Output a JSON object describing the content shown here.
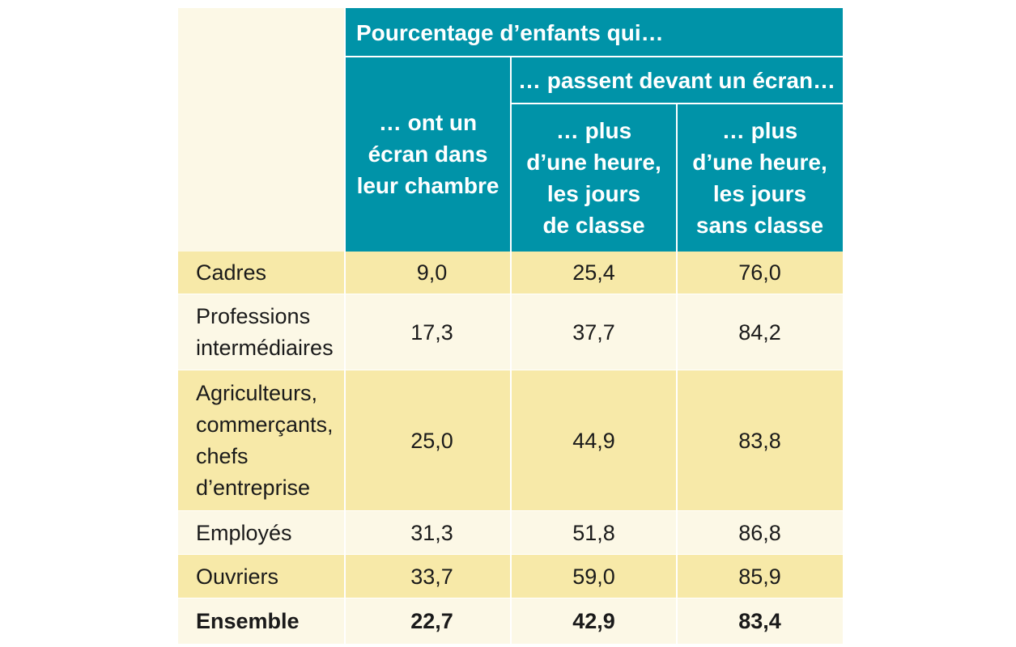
{
  "chart_data": {
    "type": "table",
    "header": {
      "top": "Pourcentage d’enfants qui…",
      "group": "… passent devant un écran…",
      "columns": [
        [
          "… ont un",
          "écran dans",
          "leur chambre"
        ],
        [
          "… plus",
          "d’une heure,",
          "les jours",
          "de classe"
        ],
        [
          "… plus",
          "d’une heure,",
          "les jours",
          "sans classe"
        ]
      ]
    },
    "rows": [
      {
        "label": [
          "Cadres"
        ],
        "values": [
          "9,0",
          "25,4",
          "76,0"
        ]
      },
      {
        "label": [
          "Professions",
          "intermédiaires"
        ],
        "values": [
          "17,3",
          "37,7",
          "84,2"
        ]
      },
      {
        "label": [
          "Agriculteurs,",
          "commerçants,",
          "chefs",
          "d’entreprise"
        ],
        "values": [
          "25,0",
          "44,9",
          "83,8"
        ]
      },
      {
        "label": [
          "Employés"
        ],
        "values": [
          "31,3",
          "51,8",
          "86,8"
        ]
      },
      {
        "label": [
          "Ouvriers"
        ],
        "values": [
          "33,7",
          "59,0",
          "85,9"
        ]
      },
      {
        "label": [
          "Ensemble"
        ],
        "values": [
          "22,7",
          "42,9",
          "83,4"
        ],
        "bold": true
      }
    ],
    "colors": {
      "header": "#0093a8",
      "row_dark": "#f7e9a8",
      "row_light": "#fcf8e6",
      "rule": "#ffffff",
      "text": "#1a1a1a"
    }
  }
}
